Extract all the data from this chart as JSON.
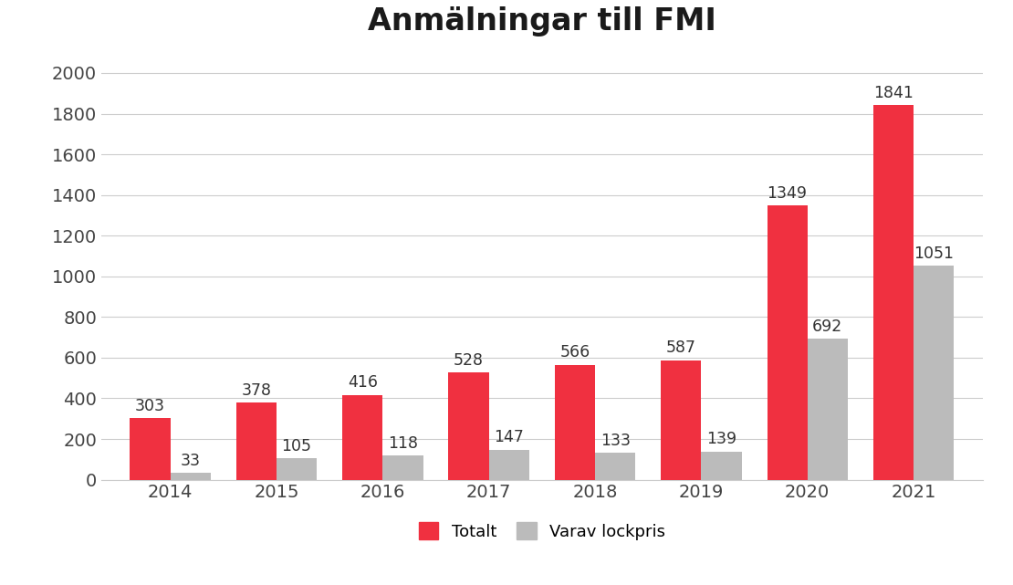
{
  "title": "Anmälningar till FMI",
  "years": [
    "2014",
    "2015",
    "2016",
    "2017",
    "2018",
    "2019",
    "2020",
    "2021"
  ],
  "totalt": [
    303,
    378,
    416,
    528,
    566,
    587,
    1349,
    1841
  ],
  "lockpris": [
    33,
    105,
    118,
    147,
    133,
    139,
    692,
    1051
  ],
  "bar_color_totalt": "#f03040",
  "bar_color_lockpris": "#bbbbbb",
  "background_color": "#ffffff",
  "title_fontsize": 24,
  "label_fontsize": 13,
  "tick_fontsize": 14,
  "legend_label_totalt": "Totalt",
  "legend_label_lockpris": "Varav lockpris",
  "ylim": [
    0,
    2100
  ],
  "yticks": [
    0,
    200,
    400,
    600,
    800,
    1000,
    1200,
    1400,
    1600,
    1800,
    2000
  ],
  "bar_width": 0.38,
  "value_fontsize": 12.5,
  "value_color": "#333333"
}
